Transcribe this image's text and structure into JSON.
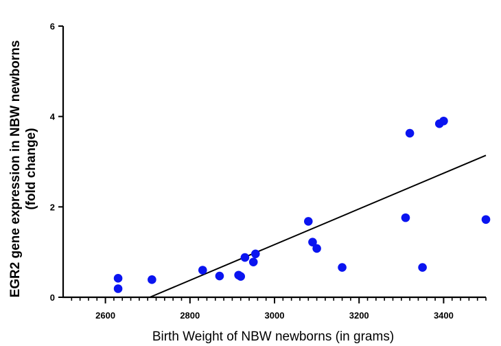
{
  "chart_data": {
    "type": "scatter",
    "xlabel": "Birth Weight of NBW newborns (in grams)",
    "ylabel_lines": [
      "EGR2 gene expression in NBW newborns",
      "(fold change)"
    ],
    "xlim": [
      2500,
      3500
    ],
    "ylim": [
      0,
      6
    ],
    "x_ticks": [
      2600,
      2800,
      3000,
      3200,
      3400
    ],
    "y_ticks": [
      0,
      2,
      4,
      6
    ],
    "x_tick_labels": [
      "2600",
      "2800",
      "3000",
      "3200",
      "3400"
    ],
    "y_tick_labels": [
      "0",
      "2",
      "4",
      "6"
    ],
    "x_minor_step": 20,
    "grid": false,
    "point_color": "#0a14f0",
    "line_color": "#000000",
    "points": [
      {
        "x": 2630,
        "y": 0.42
      },
      {
        "x": 2630,
        "y": 0.19
      },
      {
        "x": 2710,
        "y": 0.39
      },
      {
        "x": 2830,
        "y": 0.6
      },
      {
        "x": 2870,
        "y": 0.47
      },
      {
        "x": 2915,
        "y": 0.49
      },
      {
        "x": 2920,
        "y": 0.46
      },
      {
        "x": 2930,
        "y": 0.88
      },
      {
        "x": 2950,
        "y": 0.78
      },
      {
        "x": 2955,
        "y": 0.96
      },
      {
        "x": 3080,
        "y": 1.68
      },
      {
        "x": 3090,
        "y": 1.22
      },
      {
        "x": 3100,
        "y": 1.08
      },
      {
        "x": 3160,
        "y": 0.66
      },
      {
        "x": 3310,
        "y": 1.76
      },
      {
        "x": 3320,
        "y": 3.63
      },
      {
        "x": 3350,
        "y": 0.66
      },
      {
        "x": 3390,
        "y": 3.84
      },
      {
        "x": 3400,
        "y": 3.9
      },
      {
        "x": 3500,
        "y": 1.72
      }
    ],
    "fit_line": {
      "x": [
        2705,
        3500
      ],
      "y": [
        0,
        3.14
      ]
    }
  }
}
